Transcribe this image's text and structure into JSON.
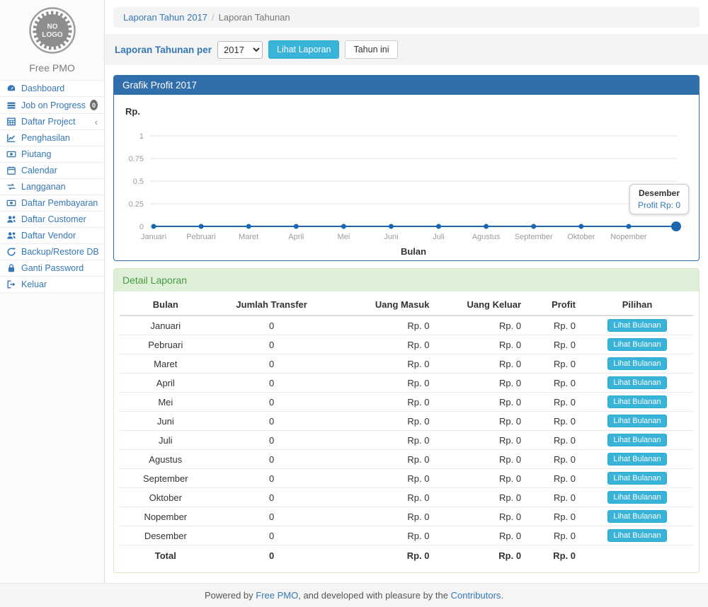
{
  "sidebar": {
    "logo_line1": "NO",
    "logo_line2": "LOGO",
    "brand": "Free PMO",
    "items": [
      {
        "id": "dashboard",
        "label": "Dashboard",
        "icon": "dashboard"
      },
      {
        "id": "job-on-progress",
        "label": "Job on Progress",
        "icon": "tasks",
        "badge": "0"
      },
      {
        "id": "daftar-project",
        "label": "Daftar Project",
        "icon": "table",
        "chevron": "‹"
      },
      {
        "id": "penghasilan",
        "label": "Penghasilan",
        "icon": "line-chart"
      },
      {
        "id": "piutang",
        "label": "Piutang",
        "icon": "money"
      },
      {
        "id": "calendar",
        "label": "Calendar",
        "icon": "calendar"
      },
      {
        "id": "langganan",
        "label": "Langganan",
        "icon": "retweet"
      },
      {
        "id": "daftar-pembayaran",
        "label": "Daftar Pembayaran",
        "icon": "money"
      },
      {
        "id": "daftar-customer",
        "label": "Daftar Customer",
        "icon": "users"
      },
      {
        "id": "daftar-vendor",
        "label": "Daftar Vendor",
        "icon": "users"
      },
      {
        "id": "backup-restore-db",
        "label": "Backup/Restore DB",
        "icon": "refresh"
      },
      {
        "id": "ganti-password",
        "label": "Ganti Password",
        "icon": "lock"
      },
      {
        "id": "keluar",
        "label": "Keluar",
        "icon": "sign-out"
      }
    ]
  },
  "breadcrumb": {
    "link": "Laporan Tahun 2017",
    "separator": "/",
    "current": "Laporan Tahunan"
  },
  "toolbar": {
    "label": "Laporan Tahunan per",
    "year_value": "2017",
    "view_button": "Lihat Laporan",
    "this_year_button": "Tahun ini"
  },
  "chart_panel": {
    "title": "Grafik Profit 2017"
  },
  "chart_data": {
    "type": "line",
    "title": "Grafik Profit 2017",
    "xlabel": "Bulan",
    "ylabel": "Rp.",
    "categories": [
      "Januari",
      "Pebruari",
      "Maret",
      "April",
      "Mei",
      "Juni",
      "Juli",
      "Agustus",
      "September",
      "Oktober",
      "Nopember",
      "Desember"
    ],
    "x_tick_labels": [
      "Januari",
      "Pebruari",
      "Maret",
      "April",
      "Mei",
      "Juni",
      "Juli",
      "Agustus",
      "September",
      "Oktober",
      "Nopember"
    ],
    "series": [
      {
        "name": "Profit",
        "values": [
          0,
          0,
          0,
          0,
          0,
          0,
          0,
          0,
          0,
          0,
          0,
          0
        ]
      }
    ],
    "ylim": [
      0,
      1
    ],
    "y_ticks": [
      0,
      0.25,
      0.5,
      0.75,
      1
    ],
    "grid": true,
    "legend": false,
    "line_color": "#1a67b0",
    "highlight_index": 11,
    "tooltip": {
      "title": "Desember",
      "text": "Profit Rp: 0"
    }
  },
  "detail": {
    "title": "Detail Laporan",
    "columns": [
      "Bulan",
      "Jumlah Transfer",
      "Uang Masuk",
      "Uang Keluar",
      "Profit",
      "Pilihan"
    ],
    "action_label": "Lihat Bulanan",
    "rows": [
      {
        "bulan": "Januari",
        "jumlah_transfer": "0",
        "uang_masuk": "Rp. 0",
        "uang_keluar": "Rp. 0",
        "profit": "Rp. 0"
      },
      {
        "bulan": "Pebruari",
        "jumlah_transfer": "0",
        "uang_masuk": "Rp. 0",
        "uang_keluar": "Rp. 0",
        "profit": "Rp. 0"
      },
      {
        "bulan": "Maret",
        "jumlah_transfer": "0",
        "uang_masuk": "Rp. 0",
        "uang_keluar": "Rp. 0",
        "profit": "Rp. 0"
      },
      {
        "bulan": "April",
        "jumlah_transfer": "0",
        "uang_masuk": "Rp. 0",
        "uang_keluar": "Rp. 0",
        "profit": "Rp. 0"
      },
      {
        "bulan": "Mei",
        "jumlah_transfer": "0",
        "uang_masuk": "Rp. 0",
        "uang_keluar": "Rp. 0",
        "profit": "Rp. 0"
      },
      {
        "bulan": "Juni",
        "jumlah_transfer": "0",
        "uang_masuk": "Rp. 0",
        "uang_keluar": "Rp. 0",
        "profit": "Rp. 0"
      },
      {
        "bulan": "Juli",
        "jumlah_transfer": "0",
        "uang_masuk": "Rp. 0",
        "uang_keluar": "Rp. 0",
        "profit": "Rp. 0"
      },
      {
        "bulan": "Agustus",
        "jumlah_transfer": "0",
        "uang_masuk": "Rp. 0",
        "uang_keluar": "Rp. 0",
        "profit": "Rp. 0"
      },
      {
        "bulan": "September",
        "jumlah_transfer": "0",
        "uang_masuk": "Rp. 0",
        "uang_keluar": "Rp. 0",
        "profit": "Rp. 0"
      },
      {
        "bulan": "Oktober",
        "jumlah_transfer": "0",
        "uang_masuk": "Rp. 0",
        "uang_keluar": "Rp. 0",
        "profit": "Rp. 0"
      },
      {
        "bulan": "Nopember",
        "jumlah_transfer": "0",
        "uang_masuk": "Rp. 0",
        "uang_keluar": "Rp. 0",
        "profit": "Rp. 0"
      },
      {
        "bulan": "Desember",
        "jumlah_transfer": "0",
        "uang_masuk": "Rp. 0",
        "uang_keluar": "Rp. 0",
        "profit": "Rp. 0"
      }
    ],
    "total_row": {
      "bulan": "Total",
      "jumlah_transfer": "0",
      "uang_masuk": "Rp. 0",
      "uang_keluar": "Rp. 0",
      "profit": "Rp. 0"
    }
  },
  "footer": {
    "powered_by": "Powered by ",
    "brand_link": "Free PMO",
    "middle": ", and developed with pleasure by the ",
    "contributors_link": "Contributors."
  },
  "colors": {
    "accent_blue": "#3578b5",
    "panel_heading_blue": "#316fac",
    "info_button": "#39b3d7",
    "success_bg": "#dff0d8",
    "success_text": "#459a45",
    "chart_line": "#1a67b0"
  }
}
